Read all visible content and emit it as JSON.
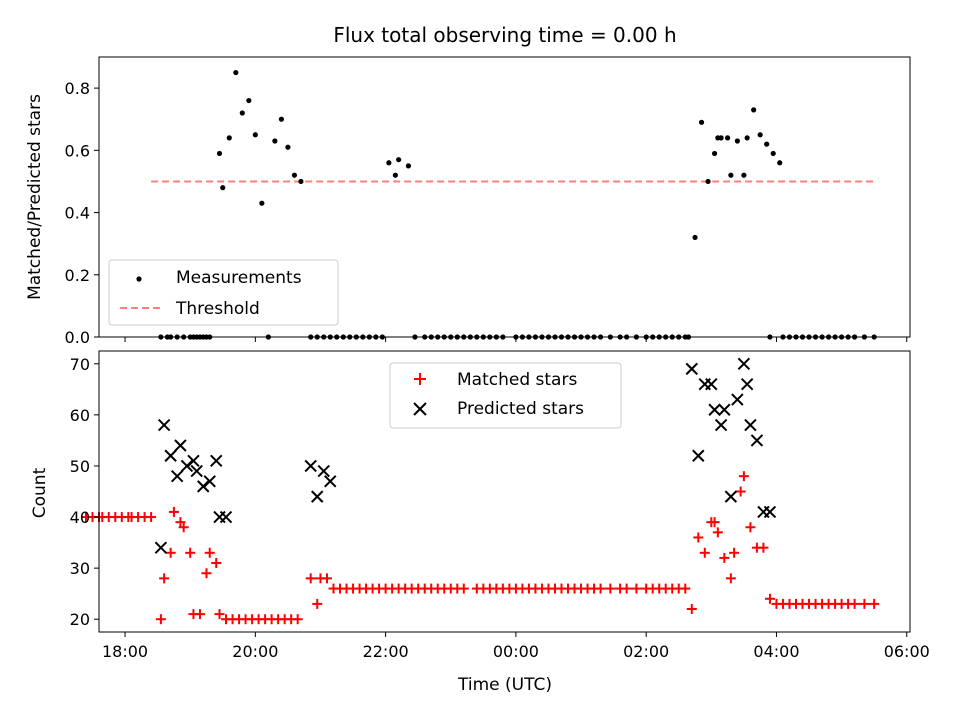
{
  "figure_title": "Flux total observing time = 0.00 h",
  "chart_data": [
    {
      "type": "scatter",
      "ylabel": "Matched/Predicted stars",
      "ylim": [
        0,
        0.9
      ],
      "yticks": [
        "0.0",
        "0.2",
        "0.4",
        "0.6",
        "0.8"
      ],
      "xlim": [
        -6.4,
        6.05
      ],
      "threshold": {
        "name": "Threshold",
        "y": 0.5,
        "x": [
          -5.6,
          5.5
        ],
        "color": "#ff7f7f"
      },
      "legend": {
        "placement": "lower-left",
        "entries": [
          "Measurements",
          "Threshold"
        ]
      },
      "series": [
        {
          "name": "Measurements",
          "color": "#000000",
          "points": [
            [
              -5.45,
              0
            ],
            [
              -5.35,
              0
            ],
            [
              -5.3,
              0
            ],
            [
              -5.2,
              0
            ],
            [
              -5.1,
              0
            ],
            [
              -5.0,
              0
            ],
            [
              -4.95,
              0
            ],
            [
              -4.9,
              0
            ],
            [
              -4.85,
              0
            ],
            [
              -4.8,
              0
            ],
            [
              -4.75,
              0
            ],
            [
              -4.7,
              0
            ],
            [
              -4.55,
              0.59
            ],
            [
              -4.5,
              0.48
            ],
            [
              -4.4,
              0.64
            ],
            [
              -4.3,
              0.85
            ],
            [
              -4.2,
              0.72
            ],
            [
              -4.1,
              0.76
            ],
            [
              -4.0,
              0.65
            ],
            [
              -3.9,
              0.43
            ],
            [
              -3.8,
              0
            ],
            [
              -3.7,
              0.63
            ],
            [
              -3.6,
              0.7
            ],
            [
              -3.5,
              0.61
            ],
            [
              -3.4,
              0.52
            ],
            [
              -3.3,
              0.5
            ],
            [
              -3.15,
              0
            ],
            [
              -3.05,
              0
            ],
            [
              -2.95,
              0
            ],
            [
              -2.85,
              0
            ],
            [
              -2.75,
              0
            ],
            [
              -2.65,
              0
            ],
            [
              -2.55,
              0
            ],
            [
              -2.45,
              0
            ],
            [
              -2.35,
              0
            ],
            [
              -2.25,
              0
            ],
            [
              -2.15,
              0
            ],
            [
              -2.05,
              0
            ],
            [
              -1.95,
              0.56
            ],
            [
              -1.85,
              0.52
            ],
            [
              -1.8,
              0.57
            ],
            [
              -1.65,
              0.55
            ],
            [
              -1.55,
              0
            ],
            [
              -1.4,
              0
            ],
            [
              -1.3,
              0
            ],
            [
              -1.2,
              0
            ],
            [
              -1.1,
              0
            ],
            [
              -1.0,
              0
            ],
            [
              -0.9,
              0
            ],
            [
              -0.8,
              0
            ],
            [
              -0.7,
              0
            ],
            [
              -0.6,
              0
            ],
            [
              -0.5,
              0
            ],
            [
              -0.4,
              0
            ],
            [
              -0.3,
              0
            ],
            [
              -0.2,
              0
            ],
            [
              0.0,
              0
            ],
            [
              0.1,
              0
            ],
            [
              0.2,
              0
            ],
            [
              0.3,
              0
            ],
            [
              0.4,
              0
            ],
            [
              0.5,
              0
            ],
            [
              0.6,
              0
            ],
            [
              0.7,
              0
            ],
            [
              0.8,
              0
            ],
            [
              0.9,
              0
            ],
            [
              1.0,
              0
            ],
            [
              1.1,
              0
            ],
            [
              1.2,
              0
            ],
            [
              1.3,
              0
            ],
            [
              1.45,
              0
            ],
            [
              1.6,
              0
            ],
            [
              1.7,
              0
            ],
            [
              1.85,
              0
            ],
            [
              2.0,
              0
            ],
            [
              2.1,
              0
            ],
            [
              2.2,
              0
            ],
            [
              2.3,
              0
            ],
            [
              2.4,
              0
            ],
            [
              2.5,
              0
            ],
            [
              2.6,
              0
            ],
            [
              2.65,
              0
            ],
            [
              2.75,
              0.32
            ],
            [
              2.85,
              0.69
            ],
            [
              2.95,
              0.5
            ],
            [
              3.05,
              0.59
            ],
            [
              3.1,
              0.64
            ],
            [
              3.15,
              0.64
            ],
            [
              3.25,
              0.64
            ],
            [
              3.3,
              0.52
            ],
            [
              3.4,
              0.63
            ],
            [
              3.5,
              0.52
            ],
            [
              3.55,
              0.64
            ],
            [
              3.65,
              0.73
            ],
            [
              3.75,
              0.65
            ],
            [
              3.85,
              0.62
            ],
            [
              3.95,
              0.59
            ],
            [
              4.05,
              0.56
            ],
            [
              3.9,
              0
            ],
            [
              4.1,
              0
            ],
            [
              4.2,
              0
            ],
            [
              4.3,
              0
            ],
            [
              4.4,
              0
            ],
            [
              4.5,
              0
            ],
            [
              4.6,
              0
            ],
            [
              4.7,
              0
            ],
            [
              4.8,
              0
            ],
            [
              4.9,
              0
            ],
            [
              5.0,
              0
            ],
            [
              5.1,
              0
            ],
            [
              5.2,
              0
            ],
            [
              5.35,
              0
            ],
            [
              5.5,
              0
            ]
          ]
        }
      ]
    },
    {
      "type": "scatter",
      "ylabel": "Count",
      "xlabel": "Time (UTC)",
      "ylim": [
        17.5,
        72.5
      ],
      "yticks": [
        "20",
        "30",
        "40",
        "50",
        "60",
        "70"
      ],
      "xlim": [
        -6.4,
        6.05
      ],
      "xticks": [
        {
          "v": -6,
          "label": "18:00"
        },
        {
          "v": -4,
          "label": "20:00"
        },
        {
          "v": -2,
          "label": "22:00"
        },
        {
          "v": 0,
          "label": "00:00"
        },
        {
          "v": 2,
          "label": "02:00"
        },
        {
          "v": 4,
          "label": "04:00"
        },
        {
          "v": 6,
          "label": "06:00"
        }
      ],
      "legend": {
        "placement": "upper-center",
        "entries": [
          "Matched stars",
          "Predicted stars"
        ]
      },
      "series": [
        {
          "name": "Matched stars",
          "marker": "plus",
          "color": "#ff0000",
          "points": [
            [
              -6.6,
              40
            ],
            [
              -6.5,
              40
            ],
            [
              -6.4,
              40
            ],
            [
              -6.35,
              40
            ],
            [
              -6.25,
              40
            ],
            [
              -6.15,
              40
            ],
            [
              -6.05,
              40
            ],
            [
              -5.95,
              40
            ],
            [
              -5.9,
              40
            ],
            [
              -5.8,
              40
            ],
            [
              -5.7,
              40
            ],
            [
              -5.6,
              40
            ],
            [
              -5.45,
              20
            ],
            [
              -5.4,
              28
            ],
            [
              -5.3,
              33
            ],
            [
              -5.25,
              41
            ],
            [
              -5.15,
              39
            ],
            [
              -5.1,
              38
            ],
            [
              -5.0,
              33
            ],
            [
              -4.95,
              21
            ],
            [
              -4.85,
              21
            ],
            [
              -4.75,
              29
            ],
            [
              -4.7,
              33
            ],
            [
              -4.6,
              31
            ],
            [
              -4.55,
              21
            ],
            [
              -4.45,
              20
            ],
            [
              -4.35,
              20
            ],
            [
              -4.25,
              20
            ],
            [
              -4.15,
              20
            ],
            [
              -4.05,
              20
            ],
            [
              -3.95,
              20
            ],
            [
              -3.85,
              20
            ],
            [
              -3.75,
              20
            ],
            [
              -3.65,
              20
            ],
            [
              -3.55,
              20
            ],
            [
              -3.45,
              20
            ],
            [
              -3.35,
              20
            ],
            [
              -3.15,
              28
            ],
            [
              -3.05,
              23
            ],
            [
              -3.0,
              28
            ],
            [
              -2.9,
              28
            ],
            [
              -2.8,
              26
            ],
            [
              -2.7,
              26
            ],
            [
              -2.6,
              26
            ],
            [
              -2.5,
              26
            ],
            [
              -2.4,
              26
            ],
            [
              -2.3,
              26
            ],
            [
              -2.2,
              26
            ],
            [
              -2.1,
              26
            ],
            [
              -2.0,
              26
            ],
            [
              -1.9,
              26
            ],
            [
              -1.8,
              26
            ],
            [
              -1.7,
              26
            ],
            [
              -1.6,
              26
            ],
            [
              -1.5,
              26
            ],
            [
              -1.4,
              26
            ],
            [
              -1.3,
              26
            ],
            [
              -1.2,
              26
            ],
            [
              -1.1,
              26
            ],
            [
              -1.0,
              26
            ],
            [
              -0.9,
              26
            ],
            [
              -0.8,
              26
            ],
            [
              -0.6,
              26
            ],
            [
              -0.5,
              26
            ],
            [
              -0.4,
              26
            ],
            [
              -0.3,
              26
            ],
            [
              -0.2,
              26
            ],
            [
              -0.1,
              26
            ],
            [
              0.0,
              26
            ],
            [
              0.1,
              26
            ],
            [
              0.2,
              26
            ],
            [
              0.3,
              26
            ],
            [
              0.4,
              26
            ],
            [
              0.5,
              26
            ],
            [
              0.6,
              26
            ],
            [
              0.7,
              26
            ],
            [
              0.8,
              26
            ],
            [
              0.9,
              26
            ],
            [
              1.0,
              26
            ],
            [
              1.1,
              26
            ],
            [
              1.2,
              26
            ],
            [
              1.3,
              26
            ],
            [
              1.45,
              26
            ],
            [
              1.6,
              26
            ],
            [
              1.7,
              26
            ],
            [
              1.85,
              26
            ],
            [
              2.0,
              26
            ],
            [
              2.1,
              26
            ],
            [
              2.2,
              26
            ],
            [
              2.3,
              26
            ],
            [
              2.4,
              26
            ],
            [
              2.5,
              26
            ],
            [
              2.6,
              26
            ],
            [
              2.7,
              22
            ],
            [
              2.8,
              36
            ],
            [
              2.9,
              33
            ],
            [
              3.0,
              39
            ],
            [
              3.05,
              39
            ],
            [
              3.1,
              37
            ],
            [
              3.2,
              32
            ],
            [
              3.3,
              28
            ],
            [
              3.35,
              33
            ],
            [
              3.45,
              45
            ],
            [
              3.5,
              48
            ],
            [
              3.6,
              38
            ],
            [
              3.7,
              34
            ],
            [
              3.8,
              34
            ],
            [
              3.9,
              24
            ],
            [
              4.0,
              23
            ],
            [
              4.1,
              23
            ],
            [
              4.2,
              23
            ],
            [
              4.3,
              23
            ],
            [
              4.4,
              23
            ],
            [
              4.5,
              23
            ],
            [
              4.6,
              23
            ],
            [
              4.7,
              23
            ],
            [
              4.8,
              23
            ],
            [
              4.9,
              23
            ],
            [
              5.0,
              23
            ],
            [
              5.1,
              23
            ],
            [
              5.2,
              23
            ],
            [
              5.35,
              23
            ],
            [
              5.5,
              23
            ]
          ]
        },
        {
          "name": "Predicted stars",
          "marker": "x",
          "color": "#000000",
          "points": [
            [
              -5.45,
              34
            ],
            [
              -5.4,
              58
            ],
            [
              -5.3,
              52
            ],
            [
              -5.2,
              48
            ],
            [
              -5.15,
              54
            ],
            [
              -5.05,
              50
            ],
            [
              -4.95,
              51
            ],
            [
              -4.9,
              49
            ],
            [
              -4.8,
              46
            ],
            [
              -4.7,
              47
            ],
            [
              -4.6,
              51
            ],
            [
              -4.55,
              40
            ],
            [
              -4.45,
              40
            ],
            [
              -3.15,
              50
            ],
            [
              -3.05,
              44
            ],
            [
              -2.95,
              49
            ],
            [
              -2.85,
              47
            ],
            [
              2.7,
              69
            ],
            [
              2.8,
              52
            ],
            [
              2.9,
              66
            ],
            [
              3.0,
              66
            ],
            [
              3.05,
              61
            ],
            [
              3.15,
              58
            ],
            [
              3.2,
              61
            ],
            [
              3.3,
              44
            ],
            [
              3.4,
              63
            ],
            [
              3.5,
              70
            ],
            [
              3.55,
              66
            ],
            [
              3.6,
              58
            ],
            [
              3.7,
              55
            ],
            [
              3.8,
              41
            ],
            [
              3.9,
              41
            ]
          ]
        }
      ]
    }
  ]
}
